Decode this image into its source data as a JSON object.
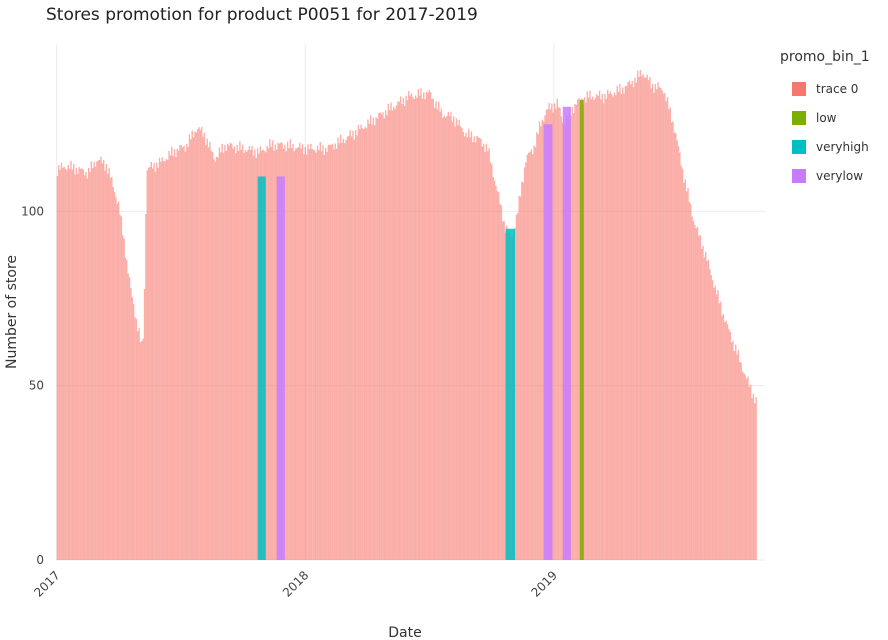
{
  "chart_data": {
    "type": "bar",
    "title": "Stores promotion for product P0051 for 2017-2019",
    "xlabel": "Date",
    "ylabel": "Number of store",
    "x_range": [
      "2016-12-31",
      "2019-11-07"
    ],
    "ylim": [
      0,
      148
    ],
    "x_ticks": [
      {
        "date": "2017-01-01",
        "label": "2017"
      },
      {
        "date": "2018-01-01",
        "label": "2018"
      },
      {
        "date": "2019-01-01",
        "label": "2019"
      }
    ],
    "y_ticks": [
      {
        "value": 0,
        "label": "0"
      },
      {
        "value": 50,
        "label": "50"
      },
      {
        "value": 100,
        "label": "100"
      }
    ],
    "grid": true,
    "legend": {
      "title": "promo_bin_1",
      "position": "top-right",
      "entries": [
        {
          "name": "trace 0",
          "color": "#F8766D"
        },
        {
          "name": "low",
          "color": "#7CAE00"
        },
        {
          "name": "veryhigh",
          "color": "#00BFC4"
        },
        {
          "name": "verylow",
          "color": "#C77CFF"
        }
      ]
    },
    "base_series_profile": [
      [
        "2017-01-01",
        112
      ],
      [
        "2017-01-15",
        113
      ],
      [
        "2017-02-01",
        112
      ],
      [
        "2017-02-15",
        111
      ],
      [
        "2017-03-01",
        115
      ],
      [
        "2017-03-15",
        113
      ],
      [
        "2017-04-01",
        102
      ],
      [
        "2017-04-10",
        90
      ],
      [
        "2017-04-20",
        76
      ],
      [
        "2017-04-30",
        66
      ],
      [
        "2017-05-05",
        61
      ],
      [
        "2017-05-08",
        66
      ],
      [
        "2017-05-12",
        112
      ],
      [
        "2017-06-01",
        114
      ],
      [
        "2017-06-20",
        117
      ],
      [
        "2017-07-10",
        119
      ],
      [
        "2017-07-25",
        124
      ],
      [
        "2017-08-05",
        122
      ],
      [
        "2017-08-20",
        115
      ],
      [
        "2017-09-05",
        119
      ],
      [
        "2017-10-01",
        118
      ],
      [
        "2017-10-25",
        117
      ],
      [
        "2017-11-10",
        119
      ],
      [
        "2017-12-01",
        119
      ],
      [
        "2018-01-01",
        118
      ],
      [
        "2018-02-01",
        118
      ],
      [
        "2018-03-01",
        121
      ],
      [
        "2018-04-01",
        125
      ],
      [
        "2018-05-01",
        129
      ],
      [
        "2018-06-01",
        133
      ],
      [
        "2018-07-01",
        134
      ],
      [
        "2018-07-20",
        128
      ],
      [
        "2018-08-05",
        127
      ],
      [
        "2018-08-25",
        122
      ],
      [
        "2018-09-10",
        121
      ],
      [
        "2018-09-25",
        118
      ],
      [
        "2018-10-10",
        105
      ],
      [
        "2018-10-20",
        96
      ],
      [
        "2018-10-30",
        92
      ],
      [
        "2018-11-08",
        100
      ],
      [
        "2018-11-20",
        115
      ],
      [
        "2018-12-01",
        118
      ],
      [
        "2018-12-10",
        124
      ],
      [
        "2018-12-20",
        129
      ],
      [
        "2019-01-05",
        131
      ],
      [
        "2019-01-15",
        125
      ],
      [
        "2019-02-01",
        131
      ],
      [
        "2019-02-20",
        133
      ],
      [
        "2019-03-15",
        133
      ],
      [
        "2019-04-10",
        135
      ],
      [
        "2019-05-01",
        138
      ],
      [
        "2019-05-10",
        140
      ],
      [
        "2019-05-25",
        136
      ],
      [
        "2019-06-10",
        135
      ],
      [
        "2019-06-25",
        125
      ],
      [
        "2019-07-10",
        110
      ],
      [
        "2019-07-25",
        97
      ],
      [
        "2019-08-10",
        88
      ],
      [
        "2019-08-25",
        78
      ],
      [
        "2019-09-10",
        68
      ],
      [
        "2019-09-25",
        60
      ],
      [
        "2019-10-10",
        52
      ],
      [
        "2019-10-25",
        45
      ]
    ],
    "promo_bars": [
      {
        "series": "veryhigh",
        "start": "2017-10-23",
        "end": "2017-11-03",
        "value": 110
      },
      {
        "series": "verylow",
        "start": "2017-11-20",
        "end": "2017-12-01",
        "value": 110
      },
      {
        "series": "veryhigh",
        "start": "2018-10-22",
        "end": "2018-11-04",
        "value": 95
      },
      {
        "series": "verylow",
        "start": "2018-12-17",
        "end": "2018-12-29",
        "value": 125
      },
      {
        "series": "verylow",
        "start": "2019-01-14",
        "end": "2019-01-25",
        "value": 130
      },
      {
        "series": "low",
        "start": "2019-02-08",
        "end": "2019-02-13",
        "value": 132
      }
    ],
    "bar_opacity": 0.6
  }
}
